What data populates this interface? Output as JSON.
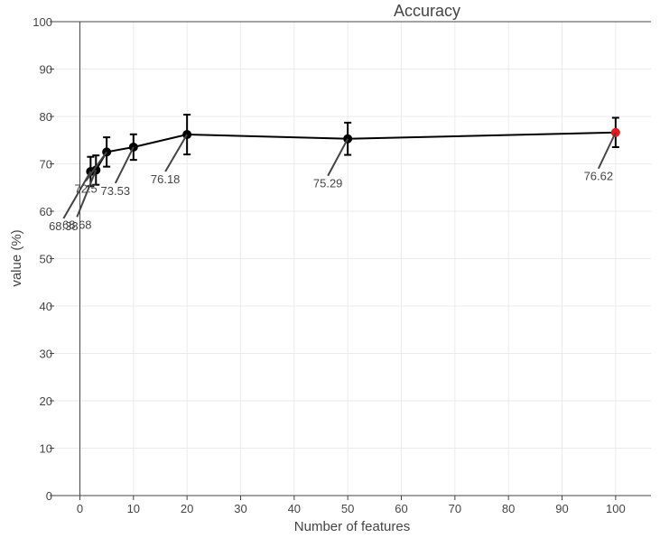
{
  "chart_data": {
    "type": "scatter",
    "title": "Accuracy",
    "xlabel": "Number of features",
    "ylabel": "value (%)",
    "xlim": [
      -4.8,
      106.6
    ],
    "ylim": [
      0,
      100
    ],
    "x_ticks": [
      0,
      10,
      20,
      30,
      40,
      50,
      60,
      70,
      80,
      90,
      100
    ],
    "y_ticks": [
      0,
      10,
      20,
      30,
      40,
      50,
      60,
      70,
      80,
      90,
      100
    ],
    "grid": true,
    "series": [
      {
        "x": [
          2,
          3,
          5,
          10,
          20,
          50,
          100
        ],
        "y": [
          68.38,
          68.68,
          72.5,
          73.53,
          76.18,
          75.29,
          76.62
        ],
        "error_plus": [
          3.1,
          3.1,
          3.1,
          2.7,
          4.2,
          3.4,
          3.1
        ],
        "error_minus": [
          3.1,
          3.1,
          3.1,
          2.7,
          4.2,
          3.4,
          3.1
        ],
        "data_labels": [
          "68.38",
          "68.68",
          "72.5",
          "73.53",
          "76.18",
          "75.29",
          "76.62"
        ],
        "line_color": "#000000",
        "marker_color": "#000000",
        "highlight_index": 6,
        "highlight_color": "#e8171b"
      }
    ]
  }
}
